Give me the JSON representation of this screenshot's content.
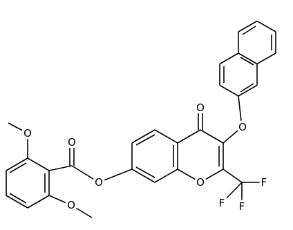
{
  "atoms": {
    "carbonyl_oxygen": "O",
    "aryl_ether_oxygen": "O",
    "ring_oxygen": "O",
    "ester_oxygen": "O",
    "ester_carbonyl_oxygen": "O",
    "methoxy_oxygen_top": "O",
    "methoxy_oxygen_bottom": "O",
    "fluorine_1": "F",
    "fluorine_2": "F",
    "fluorine_3": "F"
  }
}
